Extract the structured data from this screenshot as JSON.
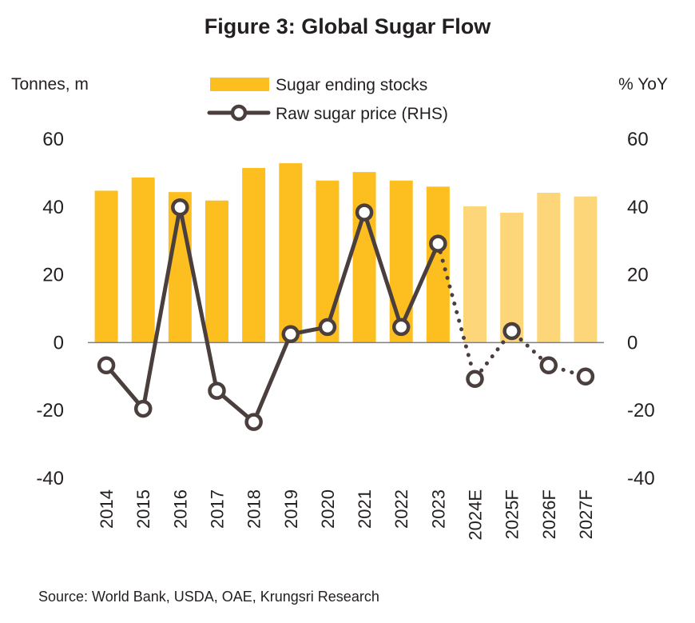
{
  "chart_data": {
    "type": "bar",
    "title": "Figure 3: Global Sugar Flow",
    "left_axis_label": "Tonnes, m",
    "right_axis_label": "% YoY",
    "categories": [
      "2014",
      "2015",
      "2016",
      "2017",
      "2018",
      "2019",
      "2020",
      "2021",
      "2022",
      "2023",
      "2024E",
      "2025F",
      "2026F",
      "2027F"
    ],
    "ylim_left": [
      -40,
      60
    ],
    "ylim_right": [
      -40,
      60
    ],
    "yticks_left": [
      "60",
      "40",
      "20",
      "0",
      "-20",
      "-40"
    ],
    "yticks_right": [
      "60",
      "40",
      "20",
      "0",
      "-20",
      "-40"
    ],
    "ytick_values": [
      60,
      40,
      20,
      0,
      -20,
      -40
    ],
    "grid": false,
    "legend_position": "top-center",
    "series": [
      {
        "name": "Sugar ending stocks",
        "type": "bar",
        "axis": "left",
        "values": [
          44.8,
          48.7,
          44.4,
          41.9,
          51.5,
          52.9,
          47.8,
          50.3,
          47.8,
          46.0,
          40.2,
          38.3,
          44.2,
          43.1
        ],
        "forecast_from_index": 10,
        "color": "#FDBE1F",
        "forecast_color": "#FED67A"
      },
      {
        "name": "Raw sugar price (RHS)",
        "type": "line",
        "axis": "right",
        "values": [
          -6.7,
          -19.5,
          39.9,
          -14.2,
          -23.4,
          2.5,
          4.6,
          38.4,
          4.6,
          29.2,
          -10.7,
          3.4,
          -6.7,
          -10.0
        ],
        "forecast_from_index": 10,
        "line_style_actual": "solid",
        "line_style_forecast": "dotted",
        "color": "#4A3F3D",
        "marker": "hollow-circle"
      }
    ],
    "source": "Source: World Bank, USDA, OAE, Krungsri Research"
  }
}
